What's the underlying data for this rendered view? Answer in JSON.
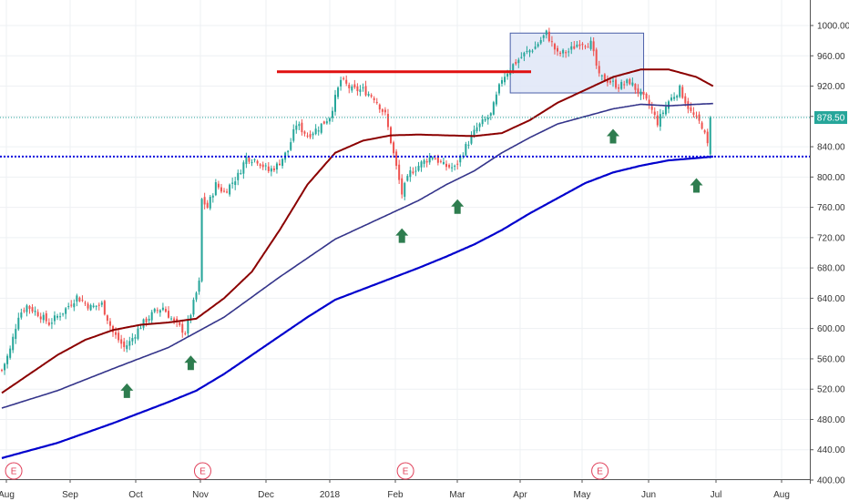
{
  "chart_data": {
    "type": "candlestick",
    "title": "",
    "x_labels": [
      "Aug",
      "Sep",
      "Oct",
      "Nov",
      "Dec",
      "2018",
      "Feb",
      "Mar",
      "Apr",
      "May",
      "Jun",
      "Jul",
      "Aug"
    ],
    "y_ticks": [
      "1000.00",
      "960.00",
      "920.00",
      "880.00",
      "840.00",
      "800.00",
      "760.00",
      "720.00",
      "680.00",
      "640.00",
      "600.00",
      "560.00",
      "520.00",
      "480.00",
      "440.00",
      "400.00"
    ],
    "ylim": [
      400,
      1000
    ],
    "last_price": "878.50",
    "last_price_value": 878.5,
    "support_level": 827,
    "resistance_level": 939,
    "earnings_marker": "E",
    "earnings_bars": [
      1,
      69,
      142,
      212
    ],
    "consolidation_box": {
      "from_bar": 183,
      "to_bar": 231,
      "low": 911,
      "high": 990
    },
    "arrow_bars": [
      45,
      68,
      144,
      164,
      220,
      250
    ],
    "colors": {
      "up": "#26a69a",
      "down": "#ef5350",
      "ma_short": "#8b0000",
      "ma_mid": "#34348a",
      "ma_long": "#0000cd",
      "resistance": "#e01010",
      "support": "#0000dd",
      "arrow": "#2e7d4f",
      "box_fill": "#dfe6f7",
      "box_stroke": "#4a5fa8",
      "price_tag": "#26a69a",
      "earnings": "#e0405a"
    },
    "series": [
      {
        "type": "candlestick",
        "anchors": [
          [
            0,
            545
          ],
          [
            3,
            572
          ],
          [
            6,
            618
          ],
          [
            9,
            630
          ],
          [
            13,
            620
          ],
          [
            17,
            607
          ],
          [
            22,
            622
          ],
          [
            27,
            642
          ],
          [
            32,
            628
          ],
          [
            36,
            632
          ],
          [
            40,
            595
          ],
          [
            44,
            575
          ],
          [
            46,
            582
          ],
          [
            50,
            604
          ],
          [
            55,
            622
          ],
          [
            58,
            628
          ],
          [
            62,
            608
          ],
          [
            66,
            595
          ],
          [
            68,
            620
          ],
          [
            71,
            660
          ],
          [
            72,
            770
          ],
          [
            74,
            760
          ],
          [
            77,
            790
          ],
          [
            80,
            780
          ],
          [
            85,
            802
          ],
          [
            88,
            826
          ],
          [
            92,
            822
          ],
          [
            96,
            808
          ],
          [
            99,
            815
          ],
          [
            103,
            835
          ],
          [
            106,
            870
          ],
          [
            110,
            855
          ],
          [
            114,
            865
          ],
          [
            118,
            880
          ],
          [
            122,
            928
          ],
          [
            126,
            915
          ],
          [
            130,
            915
          ],
          [
            134,
            905
          ],
          [
            138,
            882
          ],
          [
            141,
            830
          ],
          [
            144,
            778
          ],
          [
            147,
            806
          ],
          [
            151,
            818
          ],
          [
            155,
            828
          ],
          [
            159,
            815
          ],
          [
            163,
            812
          ],
          [
            167,
            840
          ],
          [
            171,
            865
          ],
          [
            176,
            882
          ],
          [
            180,
            930
          ],
          [
            184,
            948
          ],
          [
            188,
            962
          ],
          [
            192,
            972
          ],
          [
            196,
            990
          ],
          [
            200,
            962
          ],
          [
            204,
            966
          ],
          [
            208,
            978
          ],
          [
            212,
            976
          ],
          [
            215,
            932
          ],
          [
            218,
            928
          ],
          [
            222,
            920
          ],
          [
            226,
            926
          ],
          [
            230,
            908
          ],
          [
            233,
            895
          ],
          [
            236,
            872
          ],
          [
            240,
            900
          ],
          [
            244,
            916
          ],
          [
            248,
            885
          ],
          [
            252,
            868
          ],
          [
            254,
            842
          ],
          [
            255,
            878.5
          ]
        ]
      },
      {
        "name": "",
        "type": "line",
        "anchors": [
          [
            0,
            515
          ],
          [
            10,
            540
          ],
          [
            20,
            565
          ],
          [
            30,
            585
          ],
          [
            40,
            598
          ],
          [
            50,
            605
          ],
          [
            60,
            608
          ],
          [
            70,
            613
          ],
          [
            80,
            640
          ],
          [
            90,
            675
          ],
          [
            100,
            730
          ],
          [
            110,
            790
          ],
          [
            120,
            832
          ],
          [
            130,
            848
          ],
          [
            140,
            855
          ],
          [
            150,
            856
          ],
          [
            160,
            855
          ],
          [
            170,
            854
          ],
          [
            180,
            858
          ],
          [
            190,
            875
          ],
          [
            200,
            898
          ],
          [
            210,
            915
          ],
          [
            220,
            932
          ],
          [
            230,
            942
          ],
          [
            240,
            942
          ],
          [
            250,
            932
          ],
          [
            256,
            920
          ]
        ]
      },
      {
        "name": "",
        "type": "line",
        "anchors": [
          [
            0,
            495
          ],
          [
            20,
            518
          ],
          [
            40,
            547
          ],
          [
            60,
            575
          ],
          [
            80,
            615
          ],
          [
            100,
            668
          ],
          [
            120,
            718
          ],
          [
            140,
            752
          ],
          [
            150,
            769
          ],
          [
            160,
            790
          ],
          [
            170,
            808
          ],
          [
            180,
            832
          ],
          [
            190,
            852
          ],
          [
            200,
            870
          ],
          [
            210,
            880
          ],
          [
            220,
            890
          ],
          [
            230,
            896
          ],
          [
            240,
            894
          ],
          [
            250,
            896
          ],
          [
            256,
            897
          ]
        ]
      },
      {
        "name": "",
        "type": "line",
        "anchors": [
          [
            0,
            429
          ],
          [
            20,
            449
          ],
          [
            40,
            475
          ],
          [
            60,
            503
          ],
          [
            70,
            518
          ],
          [
            80,
            540
          ],
          [
            90,
            565
          ],
          [
            100,
            590
          ],
          [
            110,
            615
          ],
          [
            120,
            638
          ],
          [
            130,
            652
          ],
          [
            140,
            666
          ],
          [
            150,
            680
          ],
          [
            160,
            695
          ],
          [
            170,
            711
          ],
          [
            180,
            730
          ],
          [
            190,
            752
          ],
          [
            200,
            772
          ],
          [
            210,
            792
          ],
          [
            220,
            806
          ],
          [
            230,
            815
          ],
          [
            240,
            822
          ],
          [
            250,
            825
          ],
          [
            256,
            827
          ]
        ]
      }
    ]
  }
}
